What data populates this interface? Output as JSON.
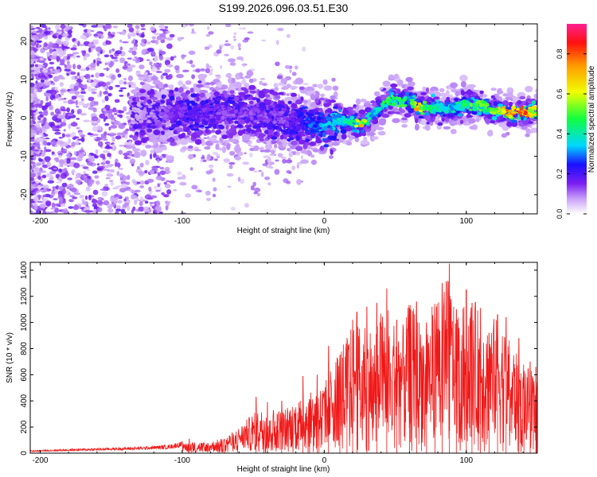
{
  "title": "S199.2026.096.03.51.E30",
  "chart_data": [
    {
      "type": "heatmap",
      "title": "S199.2026.096.03.51.E30",
      "xlabel": "Height of straight line (km)",
      "ylabel": "Frequency (Hz)",
      "xlim": [
        -207,
        150
      ],
      "ylim": [
        -25,
        24.5
      ],
      "xticks": [
        -200,
        -100,
        0,
        100
      ],
      "yticks": [
        -20,
        -10,
        0,
        10,
        20
      ],
      "colorbar": {
        "label": "Normalized spectral amplitude",
        "range": [
          0,
          0.95
        ],
        "ticks": [
          0.0,
          0.2,
          0.4,
          0.6,
          0.8
        ]
      },
      "ridge": {
        "x": [
          -130,
          -110,
          -90,
          -70,
          -50,
          -30,
          -20,
          -10,
          0,
          10,
          20,
          25,
          30,
          35,
          40,
          45,
          50,
          55,
          60,
          65,
          70,
          80,
          90,
          100,
          110,
          120,
          130,
          140,
          150
        ],
        "freq": [
          1,
          1,
          1,
          2,
          1,
          0,
          -1,
          -1,
          -1.5,
          -1,
          -1,
          -1.5,
          -1,
          1,
          3,
          4.5,
          5,
          4.5,
          4.5,
          3,
          2.5,
          2.5,
          2.5,
          3.5,
          3,
          2,
          1.5,
          1.5,
          1.5
        ],
        "amplitude": [
          0.08,
          0.15,
          0.2,
          0.15,
          0.15,
          0.15,
          0.2,
          0.3,
          0.35,
          0.4,
          0.45,
          0.75,
          0.5,
          0.35,
          0.45,
          0.5,
          0.55,
          0.5,
          0.4,
          0.75,
          0.5,
          0.45,
          0.4,
          0.5,
          0.55,
          0.6,
          0.8,
          0.85,
          0.6
        ]
      }
    },
    {
      "type": "line",
      "xlabel": "Height of straight line (km)",
      "ylabel": "SNR (10 * v/v)",
      "xlim": [
        -207,
        150
      ],
      "ylim": [
        0,
        1460
      ],
      "xticks": [
        -200,
        -100,
        0,
        100
      ],
      "yticks": [
        0,
        200,
        400,
        600,
        800,
        1000,
        1200,
        1400
      ],
      "series": [
        {
          "name": "SNR",
          "color": "#f01818",
          "x": [
            -207,
            -190,
            -170,
            -150,
            -130,
            -110,
            -100,
            -95,
            -90,
            -80,
            -70,
            -60,
            -50,
            -40,
            -30,
            -20,
            -10,
            0,
            5,
            10,
            15,
            20,
            25,
            30,
            35,
            40,
            45,
            50,
            55,
            60,
            65,
            70,
            75,
            80,
            85,
            90,
            95,
            100,
            105,
            110,
            115,
            120,
            125,
            130,
            135,
            140,
            145,
            150
          ],
          "y": [
            15,
            20,
            25,
            30,
            35,
            45,
            65,
            85,
            75,
            80,
            110,
            180,
            280,
            320,
            300,
            360,
            420,
            480,
            600,
            720,
            800,
            900,
            880,
            950,
            800,
            1000,
            1050,
            900,
            880,
            1050,
            980,
            880,
            1000,
            1150,
            1300,
            1100,
            1000,
            1050,
            1100,
            950,
            900,
            950,
            900,
            800,
            700,
            650,
            580,
            560
          ],
          "peaks": [
            {
              "x": -95,
              "y": 110
            },
            {
              "x": -48,
              "y": 430
            },
            {
              "x": -40,
              "y": 390
            },
            {
              "x": -30,
              "y": 400
            },
            {
              "x": -15,
              "y": 590
            },
            {
              "x": -5,
              "y": 600
            },
            {
              "x": 3,
              "y": 820
            },
            {
              "x": 11,
              "y": 740
            },
            {
              "x": 16,
              "y": 880
            },
            {
              "x": 20,
              "y": 1020
            },
            {
              "x": 23,
              "y": 1080
            },
            {
              "x": 30,
              "y": 1120
            },
            {
              "x": 37,
              "y": 1150
            },
            {
              "x": 44,
              "y": 1260
            },
            {
              "x": 51,
              "y": 1020
            },
            {
              "x": 60,
              "y": 1110
            },
            {
              "x": 65,
              "y": 1160
            },
            {
              "x": 72,
              "y": 1000
            },
            {
              "x": 78,
              "y": 1020
            },
            {
              "x": 83,
              "y": 1300
            },
            {
              "x": 88,
              "y": 1450
            },
            {
              "x": 93,
              "y": 1100
            },
            {
              "x": 100,
              "y": 1250
            },
            {
              "x": 104,
              "y": 1150
            },
            {
              "x": 110,
              "y": 1110
            },
            {
              "x": 116,
              "y": 920
            },
            {
              "x": 122,
              "y": 1060
            },
            {
              "x": 128,
              "y": 1040
            },
            {
              "x": 137,
              "y": 880
            },
            {
              "x": 145,
              "y": 700
            },
            {
              "x": 149,
              "y": 660
            }
          ]
        }
      ]
    }
  ]
}
